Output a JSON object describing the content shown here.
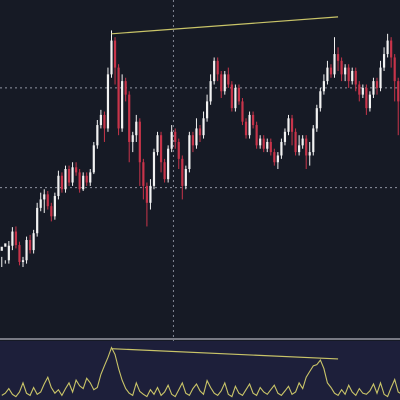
{
  "chart_data": {
    "type": "candlestick",
    "colors": {
      "background": "#161a25",
      "bull": "#f2f2f2",
      "bear": "#c8344a",
      "trendline": "#c9c468",
      "indicator_line": "#c9c468",
      "indicator_pane": "#1d1f3a",
      "dashed_line": "#aeb3c2",
      "pane_separator": "#d9dbe2"
    },
    "ylim": [
      0,
      100
    ],
    "horizontal_dashed_levels": [
      74,
      44.5
    ],
    "vertical_crosshair_index": 48.5,
    "candles": [
      [
        25.8,
        27.0,
        24.0,
        21.0
      ],
      [
        27.0,
        28.0,
        23.0,
        22.0
      ],
      [
        23.0,
        27.3,
        28.7,
        22.0
      ],
      [
        27.3,
        31.5,
        32.8,
        26.0
      ],
      [
        31.5,
        27.5,
        33.0,
        26.5
      ],
      [
        27.5,
        22.5,
        28.5,
        21.5
      ],
      [
        22.5,
        23.0,
        24.0,
        21.0
      ],
      [
        23.0,
        29.0,
        30.0,
        22.0
      ],
      [
        29.0,
        26.0,
        30.5,
        25.0
      ],
      [
        26.0,
        31.0,
        32.0,
        25.0
      ],
      [
        31.0,
        38.5,
        40.0,
        30.0
      ],
      [
        38.5,
        41.0,
        43.0,
        37.5
      ],
      [
        41.0,
        42.5,
        44.0,
        37.0
      ],
      [
        42.5,
        39.0,
        43.5,
        38.0
      ],
      [
        39.0,
        36.0,
        40.0,
        34.5
      ],
      [
        36.0,
        42.0,
        43.0,
        35.0
      ],
      [
        42.0,
        48.0,
        49.5,
        41.0
      ],
      [
        48.0,
        44.0,
        49.0,
        43.0
      ],
      [
        44.0,
        50.0,
        51.0,
        43.0
      ],
      [
        50.0,
        46.0,
        51.0,
        45.0
      ],
      [
        46.0,
        50.5,
        52.0,
        45.0
      ],
      [
        50.5,
        49.0,
        52.0,
        48.0
      ],
      [
        49.0,
        44.0,
        50.0,
        43.0
      ],
      [
        44.0,
        48.0,
        49.0,
        43.5
      ],
      [
        48.0,
        46.0,
        49.0,
        45.0
      ],
      [
        46.0,
        49.0,
        50.0,
        45.0
      ],
      [
        49.0,
        57.0,
        58.0,
        48.5
      ],
      [
        57.0,
        63.0,
        64.5,
        56.0
      ],
      [
        63.0,
        66.0,
        67.5,
        62.0
      ],
      [
        66.0,
        62.0,
        67.0,
        58.0
      ],
      [
        62.0,
        78.0,
        80.0,
        61.0
      ],
      [
        78.0,
        88.0,
        91.0,
        77.0
      ],
      [
        88.0,
        80.0,
        89.0,
        75.0
      ],
      [
        80.0,
        62.0,
        81.0,
        60.0
      ],
      [
        62.0,
        76.0,
        78.0,
        61.0
      ],
      [
        76.0,
        72.0,
        77.0,
        70.0
      ],
      [
        72.0,
        58.0,
        73.0,
        52.0
      ],
      [
        58.0,
        60.0,
        61.0,
        55.0
      ],
      [
        60.0,
        64.0,
        66.0,
        58.0
      ],
      [
        64.0,
        52.0,
        65.0,
        45.0
      ],
      [
        52.0,
        45.0,
        53.0,
        41.0
      ],
      [
        45.0,
        40.0,
        46.0,
        33.0
      ],
      [
        40.0,
        45.0,
        47.0,
        38.0
      ],
      [
        45.0,
        55.0,
        56.0,
        44.0
      ],
      [
        55.0,
        60.0,
        61.0,
        54.0
      ],
      [
        60.0,
        52.0,
        61.0,
        49.0
      ],
      [
        52.0,
        47.0,
        53.0,
        46.0
      ],
      [
        47.0,
        56.0,
        57.0,
        46.0
      ],
      [
        56.0,
        61.0,
        63.0,
        55.0
      ],
      [
        61.0,
        58.0,
        62.0,
        56.0
      ],
      [
        58.0,
        53.0,
        59.0,
        50.0
      ],
      [
        53.0,
        45.0,
        54.0,
        41.0
      ],
      [
        45.0,
        50.0,
        51.0,
        44.0
      ],
      [
        50.0,
        60.0,
        61.0,
        49.0
      ],
      [
        60.0,
        57.0,
        61.0,
        55.0
      ],
      [
        57.0,
        62.0,
        65.0,
        56.0
      ],
      [
        62.0,
        60.0,
        63.0,
        58.0
      ],
      [
        60.0,
        65.0,
        67.0,
        59.0
      ],
      [
        65.0,
        70.0,
        72.0,
        64.0
      ],
      [
        70.0,
        76.0,
        78.0,
        69.0
      ],
      [
        76.0,
        82.0,
        83.0,
        75.0
      ],
      [
        82.0,
        78.0,
        83.0,
        76.0
      ],
      [
        78.0,
        73.0,
        79.0,
        71.0
      ],
      [
        73.0,
        78.0,
        79.0,
        72.0
      ],
      [
        78.0,
        75.0,
        80.0,
        74.0
      ],
      [
        75.0,
        68.0,
        76.0,
        67.0
      ],
      [
        68.0,
        74.0,
        75.0,
        67.0
      ],
      [
        74.0,
        70.0,
        75.0,
        69.0
      ],
      [
        70.0,
        64.0,
        71.0,
        63.0
      ],
      [
        64.0,
        60.0,
        65.0,
        59.0
      ],
      [
        60.0,
        66.0,
        67.0,
        59.0
      ],
      [
        66.0,
        63.0,
        67.0,
        62.0
      ],
      [
        63.0,
        57.0,
        64.0,
        56.0
      ],
      [
        57.0,
        59.0,
        60.0,
        56.0
      ],
      [
        59.0,
        56.0,
        60.0,
        55.0
      ],
      [
        56.0,
        58.0,
        59.0,
        55.0
      ],
      [
        58.0,
        55.0,
        59.0,
        54.0
      ],
      [
        55.0,
        52.0,
        56.0,
        51.0
      ],
      [
        52.0,
        54.0,
        55.0,
        50.0
      ],
      [
        54.0,
        58.0,
        59.0,
        53.0
      ],
      [
        58.0,
        61.0,
        62.0,
        57.0
      ],
      [
        61.0,
        65.0,
        66.0,
        60.0
      ],
      [
        65.0,
        61.0,
        66.0,
        57.0
      ],
      [
        61.0,
        55.0,
        62.0,
        54.0
      ],
      [
        55.0,
        57.0,
        60.0,
        54.0
      ],
      [
        57.0,
        59.0,
        60.0,
        56.0
      ],
      [
        59.0,
        54.0,
        60.0,
        50.0
      ],
      [
        54.0,
        55.0,
        58.0,
        51.0
      ],
      [
        55.0,
        62.0,
        63.0,
        54.0
      ],
      [
        62.0,
        68.0,
        69.0,
        61.0
      ],
      [
        68.0,
        73.0,
        74.0,
        67.0
      ],
      [
        73.0,
        76.0,
        78.0,
        72.0
      ],
      [
        76.0,
        80.0,
        82.0,
        75.0
      ],
      [
        80.0,
        78.0,
        81.0,
        77.0
      ],
      [
        78.0,
        84.0,
        89.0,
        77.0
      ],
      [
        84.0,
        82.0,
        86.0,
        79.0
      ],
      [
        82.0,
        78.0,
        83.0,
        76.0
      ],
      [
        78.0,
        80.0,
        81.0,
        76.0
      ],
      [
        80.0,
        76.0,
        81.0,
        74.0
      ],
      [
        76.0,
        79.0,
        80.0,
        75.0
      ],
      [
        79.0,
        75.0,
        80.0,
        73.0
      ],
      [
        75.0,
        72.0,
        76.0,
        70.0
      ],
      [
        72.0,
        74.0,
        75.0,
        71.0
      ],
      [
        74.0,
        68.0,
        75.0,
        66.0
      ],
      [
        68.0,
        72.0,
        73.0,
        67.0
      ],
      [
        72.0,
        76.0,
        77.0,
        71.0
      ],
      [
        76.0,
        74.0,
        77.0,
        72.0
      ],
      [
        74.0,
        80.0,
        82.0,
        73.0
      ],
      [
        80.0,
        84.0,
        86.0,
        79.0
      ],
      [
        84.0,
        88.0,
        90.0,
        83.0
      ],
      [
        88.0,
        83.0,
        89.0,
        80.0
      ],
      [
        83.0,
        76.0,
        84.0,
        70.0
      ],
      [
        76.0,
        70.0,
        77.0,
        60.0
      ]
    ],
    "trendline_main": {
      "from": [
        31,
        90
      ],
      "to": [
        95,
        95
      ]
    },
    "indicator": {
      "ylim": [
        0,
        100
      ],
      "values": [
        8,
        12,
        20,
        10,
        6,
        14,
        30,
        12,
        8,
        22,
        10,
        14,
        28,
        40,
        22,
        12,
        18,
        8,
        20,
        30,
        14,
        35,
        25,
        20,
        38,
        30,
        18,
        22,
        45,
        60,
        75,
        92,
        80,
        55,
        35,
        20,
        12,
        8,
        30,
        15,
        10,
        6,
        18,
        10,
        22,
        8,
        14,
        26,
        10,
        6,
        18,
        30,
        12,
        8,
        20,
        28,
        16,
        10,
        34,
        22,
        12,
        8,
        16,
        30,
        10,
        6,
        24,
        12,
        8,
        18,
        28,
        12,
        8,
        22,
        14,
        10,
        18,
        26,
        12,
        8,
        16,
        24,
        10,
        14,
        30,
        20,
        40,
        50,
        60,
        62,
        70,
        55,
        30,
        22,
        12,
        8,
        18,
        10,
        26,
        14,
        8,
        20,
        12,
        10,
        16,
        28,
        12,
        30,
        10,
        6,
        22,
        36,
        14,
        10
      ],
      "trendline": {
        "from": [
          31,
          90
        ],
        "to": [
          95,
          72
        ]
      }
    }
  }
}
